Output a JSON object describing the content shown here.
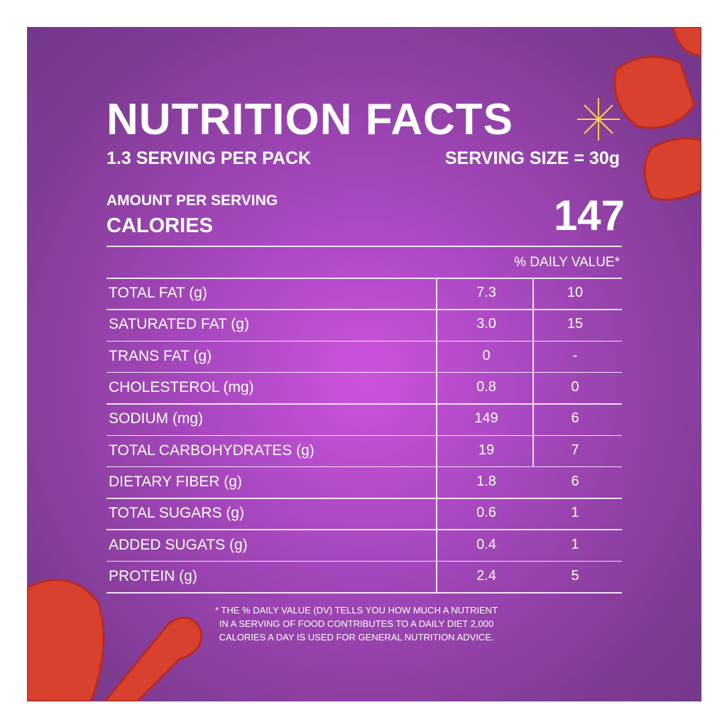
{
  "header": {
    "title": "NUTRITION FACTS",
    "servings": "1.3 SERVING PER PACK",
    "serving_size": "SERVING SIZE = 30g"
  },
  "calories": {
    "caption": "AMOUNT PER SERVING",
    "label": "CALORIES",
    "value": "147"
  },
  "table": {
    "daily_value_header": "% DAILY VALUE*",
    "rows": [
      [
        "TOTAL FAT (g)",
        "7.3",
        "10"
      ],
      [
        "SATURATED FAT (g)",
        "3.0",
        "15"
      ],
      [
        "TRANS FAT (g)",
        "0",
        "-"
      ],
      [
        "CHOLESTEROL (mg)",
        "0.8",
        "0"
      ],
      [
        "SODIUM (mg)",
        "149",
        "6"
      ],
      [
        "TOTAL CARBOHYDRATES (g)",
        "19",
        "7"
      ],
      [
        "DIETARY FIBER (g)",
        "1.8",
        "6"
      ],
      [
        "TOTAL SUGARS (g)",
        "0.6",
        "1"
      ],
      [
        "ADDED SUGATS (g)",
        "0.4",
        "1"
      ],
      [
        "PROTEIN (g)",
        "2.4",
        "5"
      ]
    ]
  },
  "footnote": [
    "* THE % DAILY VALUE (DV) TELLS YOU HOW MUCH A NUTRIENT",
    "IN A SERVING OF FOOD CONTRIBUTES TO A DAILY DIET 2,000",
    "CALORIES A DAY IS USED FOR GENERAL NUTRITION ADVICE."
  ]
}
